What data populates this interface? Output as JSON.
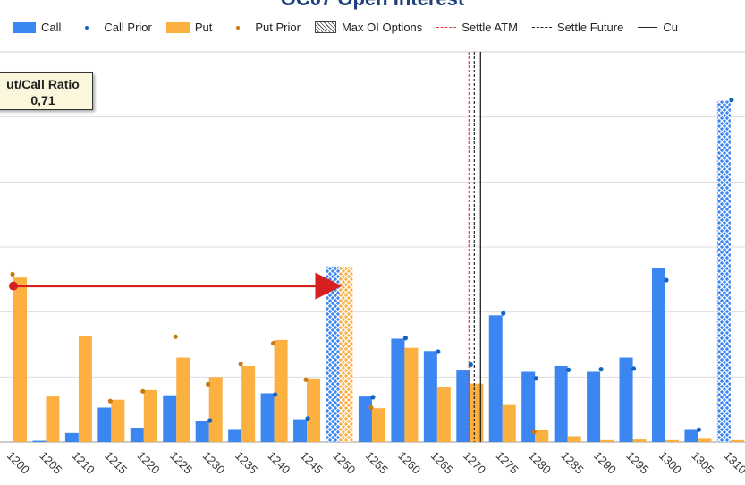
{
  "title": "OC07 Open Interest",
  "legend": [
    {
      "label": "Call",
      "kind": "box",
      "color": "#3b86f0"
    },
    {
      "label": "Call Prior",
      "kind": "dot",
      "color": "#1565c0"
    },
    {
      "label": "Put",
      "kind": "box",
      "color": "#fbb040"
    },
    {
      "label": "Put Prior",
      "kind": "dot",
      "color": "#c77a12"
    },
    {
      "label": "Max OI Options",
      "kind": "hatch",
      "color": "#444444"
    },
    {
      "label": "Settle ATM",
      "kind": "dashed",
      "color": "#e53935"
    },
    {
      "label": "Settle Future",
      "kind": "dashed",
      "color": "#222222"
    },
    {
      "label": "Cu",
      "kind": "solid",
      "color": "#222222"
    }
  ],
  "ratio_box": {
    "title": "ut/Call Ratio",
    "value": "0,71"
  },
  "colors": {
    "call": "#3b86f0",
    "put": "#fbb040",
    "call_prior": "#1565c0",
    "put_prior": "#c77a12",
    "arrow": "#d62020",
    "grid": "#dddddd"
  },
  "chart_data": {
    "type": "bar",
    "categories": [
      "1200",
      "1205",
      "1210",
      "1215",
      "1220",
      "1225",
      "1230",
      "1235",
      "1240",
      "1245",
      "1250",
      "1255",
      "1260",
      "1265",
      "1270",
      "1275",
      "1280",
      "1285",
      "1290",
      "1295",
      "1300",
      "1305",
      "1310"
    ],
    "ylim": [
      0,
      600
    ],
    "series": [
      {
        "name": "Call",
        "values": [
          0,
          2,
          14,
          53,
          22,
          72,
          33,
          20,
          75,
          35,
          270,
          70,
          159,
          140,
          110,
          195,
          108,
          117,
          108,
          130,
          268,
          20,
          525
        ]
      },
      {
        "name": "Call Prior",
        "values": [
          null,
          null,
          null,
          null,
          null,
          null,
          null,
          null,
          null,
          null,
          null,
          null,
          null,
          null,
          null,
          null,
          null,
          null,
          null,
          null,
          null,
          null,
          null
        ]
      },
      {
        "name": "Put",
        "values": [
          253,
          70,
          163,
          65,
          80,
          130,
          100,
          117,
          157,
          98,
          270,
          52,
          145,
          84,
          90,
          57,
          18,
          9,
          3,
          4,
          3,
          5,
          3
        ]
      },
      {
        "name": "Put Prior",
        "values": [
          null,
          null,
          null,
          null,
          null,
          null,
          null,
          null,
          null,
          null,
          null,
          null,
          null,
          null,
          null,
          null,
          null,
          null,
          null,
          null,
          null,
          null,
          null
        ]
      }
    ],
    "call_prior": [
      null,
      null,
      null,
      null,
      null,
      null,
      33,
      null,
      73,
      36,
      null,
      69,
      160,
      139,
      119,
      198,
      98,
      111,
      112,
      113,
      249,
      19,
      526
    ],
    "put_prior": [
      258,
      null,
      null,
      63,
      78,
      162,
      89,
      120,
      152,
      96,
      null,
      53,
      null,
      null,
      null,
      null,
      16,
      null,
      null,
      null,
      null,
      null,
      null
    ],
    "max_oi_strike": "1250",
    "max_oi_call_strike": "1310",
    "settle_atm_strike": "1270",
    "settle_future": "1271",
    "current": "1272",
    "arrow": {
      "from": "1200",
      "to": "1250",
      "value": 240
    }
  }
}
